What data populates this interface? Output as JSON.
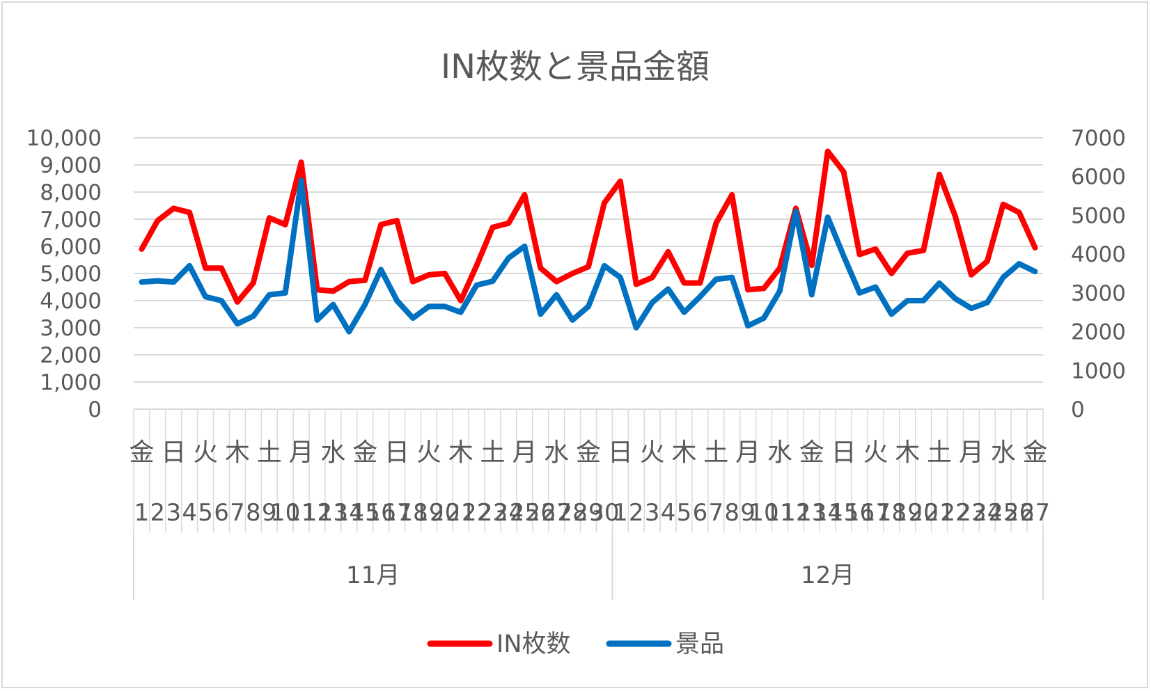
{
  "chart_data": {
    "type": "line",
    "title": "IN枚数と景品金額",
    "weekday_labels": [
      "金",
      "日",
      "火",
      "木",
      "土",
      "月",
      "水",
      "金",
      "日",
      "火",
      "木",
      "土",
      "月",
      "水",
      "金",
      "日",
      "火",
      "木",
      "土",
      "月",
      "水",
      "金",
      "日",
      "火",
      "木",
      "土",
      "月",
      "水",
      "金"
    ],
    "day_labels": [
      "1",
      "2",
      "3",
      "4",
      "5",
      "6",
      "7",
      "8",
      "9",
      "10",
      "11",
      "12",
      "13",
      "14",
      "15",
      "16",
      "17",
      "18",
      "19",
      "20",
      "21",
      "22",
      "23",
      "24",
      "25",
      "26",
      "27",
      "28",
      "29",
      "30",
      "1",
      "2",
      "3",
      "4",
      "5",
      "6",
      "7",
      "8",
      "9",
      "10",
      "11",
      "12",
      "13",
      "14",
      "15",
      "16",
      "17",
      "18",
      "19",
      "20",
      "21",
      "22",
      "23",
      "24",
      "25",
      "26",
      "27"
    ],
    "month_groups": [
      {
        "label": "11月",
        "count": 30
      },
      {
        "label": "12月",
        "count": 27
      }
    ],
    "y_left": {
      "min": 0,
      "max": 10000,
      "ticks": [
        "0",
        "1,000",
        "2,000",
        "3,000",
        "4,000",
        "5,000",
        "6,000",
        "7,000",
        "8,000",
        "9,000",
        "10,000"
      ]
    },
    "y_right": {
      "min": 0,
      "max": 7000,
      "ticks": [
        "0",
        "1000",
        "2000",
        "3000",
        "4000",
        "5000",
        "6000",
        "7000"
      ]
    },
    "grid": true,
    "legend_position": "bottom",
    "series": [
      {
        "name": "IN枚数",
        "axis": "left",
        "color": "#ff0000",
        "values": [
          5900,
          6950,
          7400,
          7250,
          5200,
          5200,
          3950,
          4650,
          7050,
          6800,
          9100,
          4400,
          4350,
          4700,
          4750,
          6800,
          6950,
          4700,
          4950,
          5000,
          4000,
          5300,
          6700,
          6850,
          7900,
          5200,
          4700,
          5000,
          5250,
          7600,
          8400,
          4600,
          4850,
          5800,
          4650,
          4650,
          6850,
          7900,
          4400,
          4450,
          5200,
          7400,
          5300,
          9500,
          8750,
          5700,
          5900,
          5000,
          5750,
          5850,
          8650,
          7100,
          4950,
          5450,
          7550,
          7250,
          5950
        ]
      },
      {
        "name": "景品",
        "axis": "right",
        "color": "#0070c0",
        "values": [
          3280,
          3310,
          3280,
          3700,
          2900,
          2800,
          2200,
          2400,
          2950,
          3000,
          5900,
          2300,
          2700,
          2000,
          2700,
          3600,
          2800,
          2350,
          2650,
          2650,
          2500,
          3200,
          3300,
          3900,
          4200,
          2450,
          2950,
          2300,
          2650,
          3700,
          3400,
          2100,
          2750,
          3100,
          2500,
          2900,
          3350,
          3400,
          2150,
          2350,
          3050,
          5100,
          2950,
          4950,
          3950,
          3000,
          3150,
          2450,
          2800,
          2800,
          3250,
          2850,
          2600,
          2750,
          3400,
          3750,
          3550
        ]
      }
    ]
  }
}
